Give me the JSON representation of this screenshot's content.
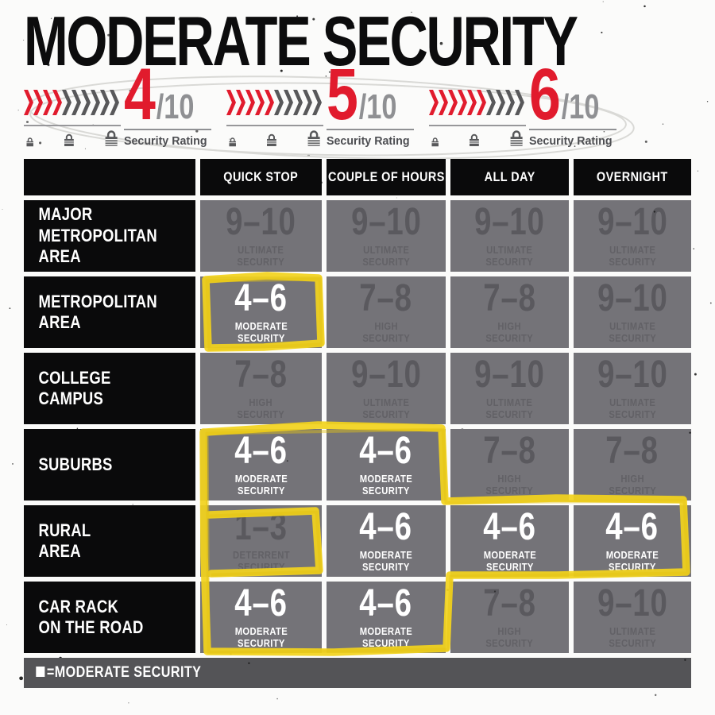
{
  "title": "MODERATE SECURITY",
  "ratings": [
    {
      "score": "4",
      "suffix": "/10",
      "caption": "Security Rating",
      "filled": 4,
      "total": 10
    },
    {
      "score": "5",
      "suffix": "/10",
      "caption": "Security Rating",
      "filled": 5,
      "total": 10
    },
    {
      "score": "6",
      "suffix": "/10",
      "caption": "Security Rating",
      "filled": 6,
      "total": 10
    }
  ],
  "table": {
    "columns": [
      "QUICK STOP",
      "COUPLE OF HOURS",
      "ALL DAY",
      "OVERNIGHT"
    ],
    "rows": [
      {
        "label": "MAJOR\nMETROPOLITAN\nAREA",
        "cells": [
          {
            "range": "9–10",
            "tier": "ULTIMATE\nSECURITY",
            "active": false
          },
          {
            "range": "9–10",
            "tier": "ULTIMATE\nSECURITY",
            "active": false
          },
          {
            "range": "9–10",
            "tier": "ULTIMATE\nSECURITY",
            "active": false
          },
          {
            "range": "9–10",
            "tier": "ULTIMATE\nSECURITY",
            "active": false
          }
        ]
      },
      {
        "label": "METROPOLITAN\nAREA",
        "cells": [
          {
            "range": "4–6",
            "tier": "MODERATE\nSECURITY",
            "active": true
          },
          {
            "range": "7–8",
            "tier": "HIGH\nSECURITY",
            "active": false
          },
          {
            "range": "7–8",
            "tier": "HIGH\nSECURITY",
            "active": false
          },
          {
            "range": "9–10",
            "tier": "ULTIMATE\nSECURITY",
            "active": false
          }
        ]
      },
      {
        "label": "COLLEGE\nCAMPUS",
        "cells": [
          {
            "range": "7–8",
            "tier": "HIGH\nSECURITY",
            "active": false
          },
          {
            "range": "9–10",
            "tier": "ULTIMATE\nSECURITY",
            "active": false
          },
          {
            "range": "9–10",
            "tier": "ULTIMATE\nSECURITY",
            "active": false
          },
          {
            "range": "9–10",
            "tier": "ULTIMATE\nSECURITY",
            "active": false
          }
        ]
      },
      {
        "label": "SUBURBS",
        "cells": [
          {
            "range": "4–6",
            "tier": "MODERATE\nSECURITY",
            "active": true
          },
          {
            "range": "4–6",
            "tier": "MODERATE\nSECURITY",
            "active": true
          },
          {
            "range": "7–8",
            "tier": "HIGH\nSECURITY",
            "active": false
          },
          {
            "range": "7–8",
            "tier": "HIGH\nSECURITY",
            "active": false
          }
        ]
      },
      {
        "label": "RURAL\nAREA",
        "cells": [
          {
            "range": "1–3",
            "tier": "DETERRENT\nSECURITY",
            "active": false
          },
          {
            "range": "4–6",
            "tier": "MODERATE\nSECURITY",
            "active": true
          },
          {
            "range": "4–6",
            "tier": "MODERATE\nSECURITY",
            "active": true
          },
          {
            "range": "4–6",
            "tier": "MODERATE\nSECURITY",
            "active": true
          }
        ]
      },
      {
        "label": "CAR RACK\nON THE ROAD",
        "cells": [
          {
            "range": "4–6",
            "tier": "MODERATE\nSECURITY",
            "active": true
          },
          {
            "range": "4–6",
            "tier": "MODERATE\nSECURITY",
            "active": true
          },
          {
            "range": "7–8",
            "tier": "HIGH\nSECURITY",
            "active": false
          },
          {
            "range": "9–10",
            "tier": "ULTIMATE\nSECURITY",
            "active": false
          }
        ]
      }
    ]
  },
  "legend": {
    "symbol": "■",
    "label": "=MODERATE SECURITY"
  },
  "colors": {
    "accent_red": "#e11b2d",
    "chevron_gray": "#58585a",
    "cell_gray": "#747378",
    "inactive_text": "#5a595e",
    "active_text": "#ffffff",
    "highlight_yellow": "#f2d31e",
    "black": "#0a0a0b",
    "legend_bar_gray": "#545457"
  },
  "chart_data": {
    "type": "table",
    "title": "MODERATE SECURITY",
    "columns": [
      "QUICK STOP",
      "COUPLE OF HOURS",
      "ALL DAY",
      "OVERNIGHT"
    ],
    "rows": [
      "MAJOR METROPOLITAN AREA",
      "METROPOLITAN AREA",
      "COLLEGE CAMPUS",
      "SUBURBS",
      "RURAL AREA",
      "CAR RACK ON THE ROAD"
    ],
    "values": [
      [
        "9–10",
        "9–10",
        "9–10",
        "9–10"
      ],
      [
        "4–6",
        "7–8",
        "7–8",
        "9–10"
      ],
      [
        "7–8",
        "9–10",
        "9–10",
        "9–10"
      ],
      [
        "4–6",
        "4–6",
        "7–8",
        "7–8"
      ],
      [
        "1–3",
        "4–6",
        "4–6",
        "4–6"
      ],
      [
        "4–6",
        "4–6",
        "7–8",
        "9–10"
      ]
    ],
    "tiers": [
      [
        "ULTIMATE",
        "ULTIMATE",
        "ULTIMATE",
        "ULTIMATE"
      ],
      [
        "MODERATE",
        "HIGH",
        "HIGH",
        "ULTIMATE"
      ],
      [
        "HIGH",
        "ULTIMATE",
        "ULTIMATE",
        "ULTIMATE"
      ],
      [
        "MODERATE",
        "MODERATE",
        "HIGH",
        "HIGH"
      ],
      [
        "DETERRENT",
        "MODERATE",
        "MODERATE",
        "MODERATE"
      ],
      [
        "MODERATE",
        "MODERATE",
        "HIGH",
        "ULTIMATE"
      ]
    ],
    "highlighted_moderate_cells": [
      {
        "row": "METROPOLITAN AREA",
        "col": "QUICK STOP"
      },
      {
        "row": "SUBURBS",
        "col": "QUICK STOP"
      },
      {
        "row": "SUBURBS",
        "col": "COUPLE OF HOURS"
      },
      {
        "row": "RURAL AREA",
        "col": "COUPLE OF HOURS"
      },
      {
        "row": "RURAL AREA",
        "col": "ALL DAY"
      },
      {
        "row": "RURAL AREA",
        "col": "OVERNIGHT"
      },
      {
        "row": "CAR RACK ON THE ROAD",
        "col": "QUICK STOP"
      },
      {
        "row": "CAR RACK ON THE ROAD",
        "col": "COUPLE OF HOURS"
      }
    ],
    "security_ratings_shown": [
      "4/10",
      "5/10",
      "6/10"
    ]
  }
}
